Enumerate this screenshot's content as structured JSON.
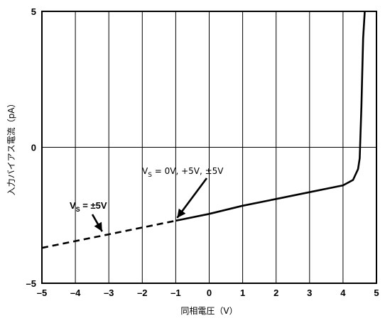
{
  "chart_data": {
    "type": "line",
    "title": "",
    "xlabel": "同相電圧（V）",
    "ylabel": "入力バイアス電流（pA）",
    "xlim": [
      -5,
      5
    ],
    "ylim": [
      -5,
      5
    ],
    "grid": "vertical lines at each integer x; horizontal line at y = 0",
    "x_ticks": [
      "–5",
      "–4",
      "–3",
      "–2",
      "–1",
      "0",
      "1",
      "2",
      "3",
      "4",
      "5"
    ],
    "y_ticks": [
      "5",
      "0",
      "–5"
    ],
    "series": [
      {
        "style": "dashed",
        "x": [
          -5.0,
          -4.0,
          -3.0,
          -2.0,
          -1.0
        ],
        "y": [
          -3.7,
          -3.45,
          -3.2,
          -2.95,
          -2.7
        ]
      },
      {
        "style": "solid",
        "x": [
          -1.0,
          0.0,
          1.0,
          2.0,
          3.0,
          4.0,
          4.3,
          4.45,
          4.5,
          4.55,
          4.6,
          4.65
        ],
        "y": [
          -2.7,
          -2.45,
          -2.15,
          -1.9,
          -1.65,
          -1.4,
          -1.2,
          -0.8,
          -0.4,
          1.5,
          4.0,
          5.0
        ]
      }
    ],
    "annotations": [
      {
        "label_main": "V",
        "label_sub": "S",
        "label_rest": " = ±5V",
        "points_to": [
          -3.2,
          -3.2
        ]
      },
      {
        "label_main": "V",
        "label_sub": "S",
        "label_rest": " = 0V, +5V, ±5V",
        "points_to": [
          -1.0,
          -2.7
        ]
      }
    ]
  }
}
